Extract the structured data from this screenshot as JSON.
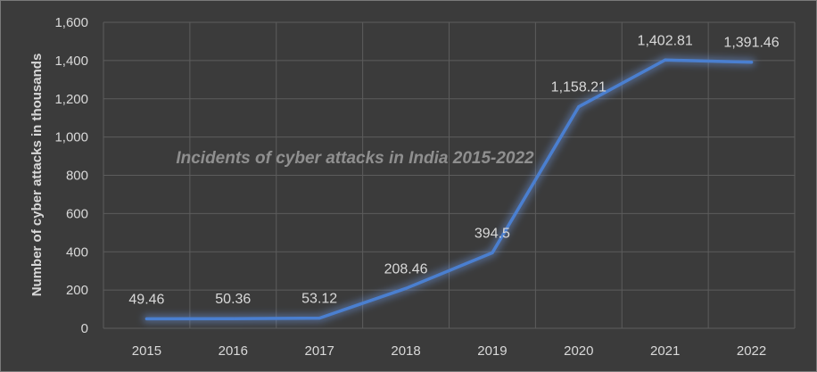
{
  "chart_data": {
    "type": "line",
    "title": "Incidents of cyber attacks in India 2015-2022",
    "xlabel": "",
    "ylabel": "Number of cyber attacks in thousands",
    "categories": [
      "2015",
      "2016",
      "2017",
      "2018",
      "2019",
      "2020",
      "2021",
      "2022"
    ],
    "series": [
      {
        "values": [
          49.46,
          50.36,
          53.12,
          208.46,
          394.5,
          1158.21,
          1402.81,
          1391.46
        ],
        "labels": [
          "49.46",
          "50.36",
          "53.12",
          "208.46",
          "394.5",
          "1,158.21",
          "1,402.81",
          "1,391.46"
        ],
        "color": "#4a7fd0"
      }
    ],
    "ylim": [
      0,
      1600
    ],
    "yticks": [
      0,
      200,
      400,
      600,
      800,
      1000,
      1200,
      1400,
      1600
    ],
    "ytick_labels": [
      "0",
      "200",
      "400",
      "600",
      "800",
      "1,000",
      "1,200",
      "1,400",
      "1,600"
    ],
    "grid": true,
    "legend": "none",
    "colors": {
      "background": "#3b3b3b",
      "grid": "#5c5c5c",
      "text": "#d9d9d9",
      "title": "#8f8f8f"
    }
  }
}
